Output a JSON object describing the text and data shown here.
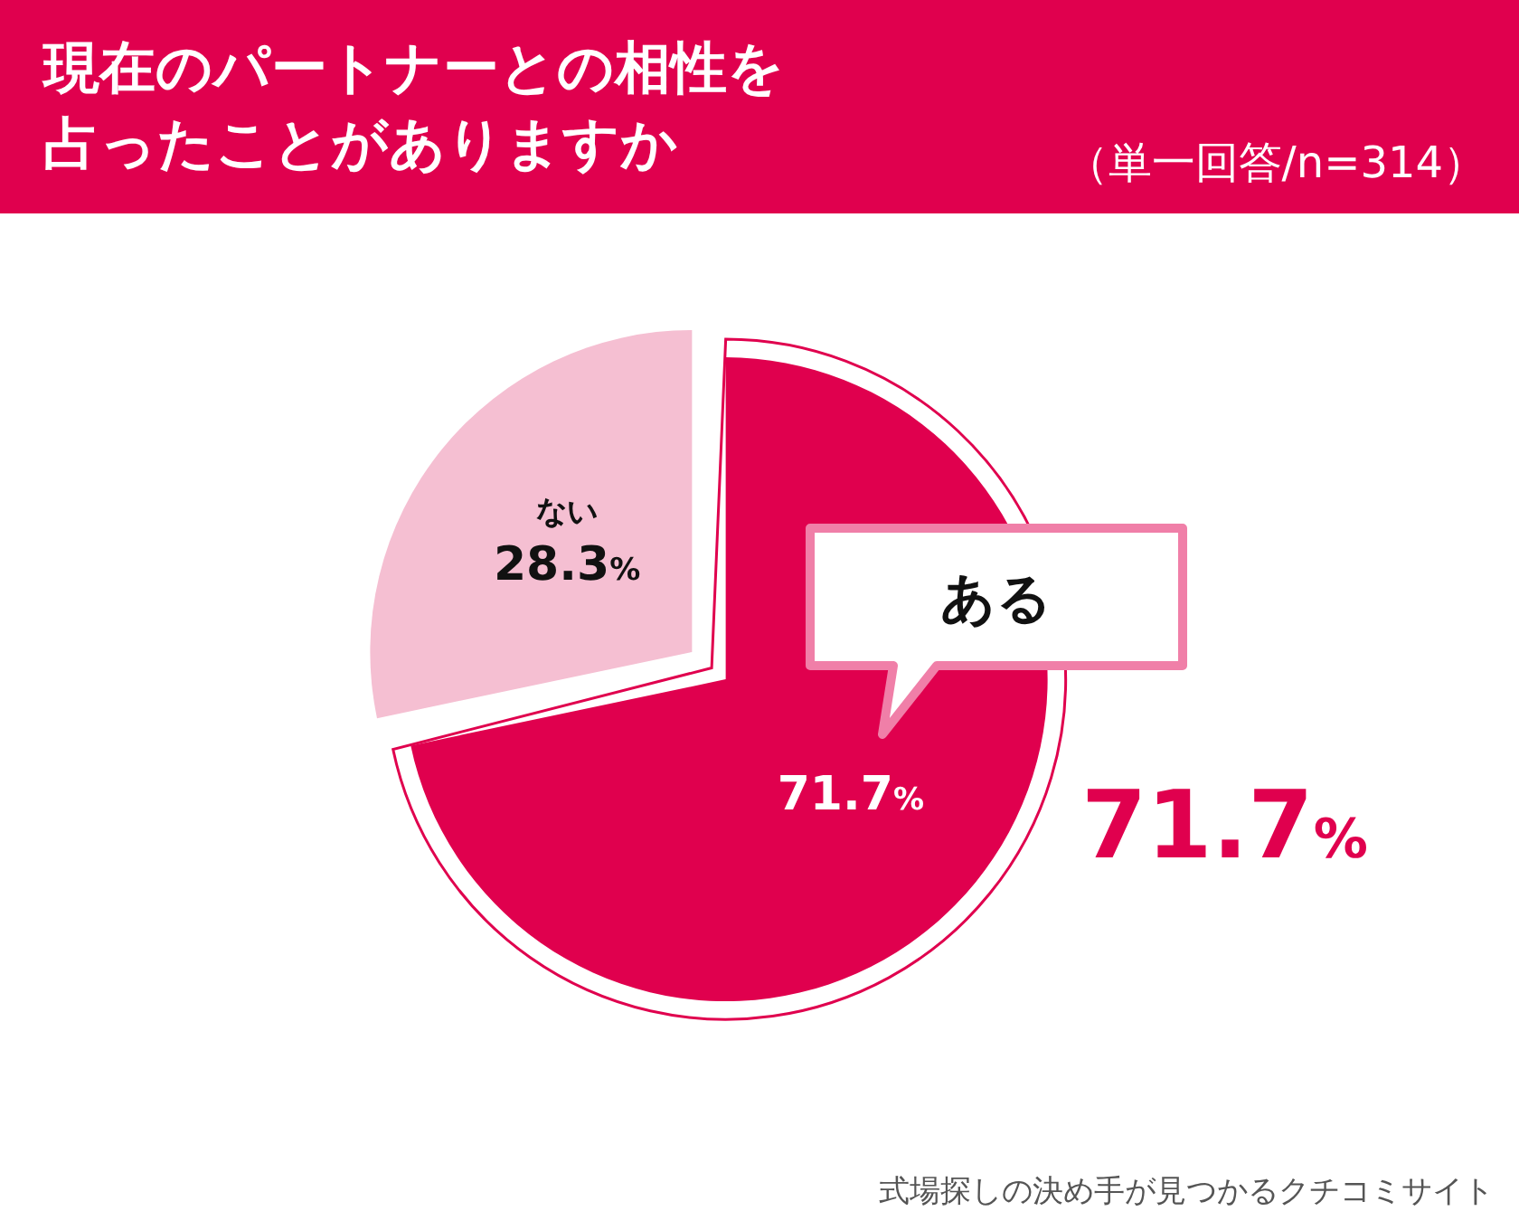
{
  "chart_data": {
    "type": "pie",
    "title": "現在のパートナーとの相性を占ったことがありますか",
    "subtitle": "（単一回答/n=314）",
    "categories": [
      "ある",
      "ない"
    ],
    "values": [
      71.7,
      28.3
    ],
    "colors": [
      "#e0004e",
      "#f5bfd2"
    ],
    "value_labels": [
      "71.7%",
      "28.3%"
    ],
    "annotations": [
      "71.7%",
      "式場探しの決め手が見つかるクチコミサイト"
    ]
  }
}
